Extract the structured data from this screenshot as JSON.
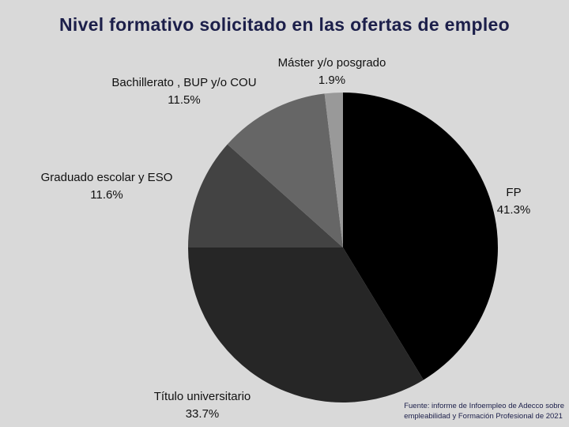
{
  "chart_data": {
    "type": "pie",
    "title": "Nivel formativo solicitado en las ofertas de empleo",
    "categories": [
      "FP",
      "Título universitario",
      "Graduado escolar y ESO",
      "Bachillerato , BUP y/o COU",
      "Máster y/o posgrado"
    ],
    "values": [
      41.3,
      33.7,
      11.6,
      11.5,
      1.9
    ],
    "value_labels": [
      "41.3%",
      "33.7%",
      "11.6%",
      "11.5%",
      "1.9%"
    ],
    "colors": [
      "#000000",
      "#262626",
      "#434343",
      "#666666",
      "#999999"
    ],
    "start": "12 o'clock",
    "direction": "clockwise",
    "legend": "none (labels beside slices)"
  },
  "source": {
    "line1": "Fuente: informe de Infoempleo de Adecco sobre",
    "line2": "empleabilidad y Formación Profesional de 2021"
  }
}
